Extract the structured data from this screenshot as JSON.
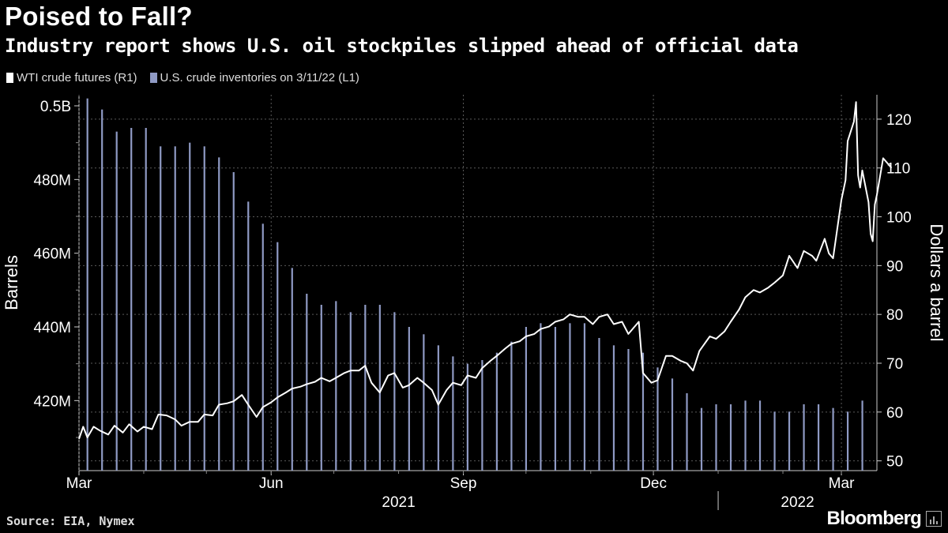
{
  "title": "Poised to Fall?",
  "subtitle": "Industry report shows U.S. oil stockpiles slipped ahead of official data",
  "legend": {
    "wti": "WTI crude futures (R1)",
    "inventories": "U.S. crude inventories on 3/11/22 (L1)"
  },
  "source": "Source: EIA, Nymex",
  "brand": "Bloomberg",
  "colors": {
    "background": "#000000",
    "line": "#ffffff",
    "bars": "#8f9ac4",
    "grid": "#5a5a5a"
  },
  "chart_data": {
    "type": "bar+line",
    "x_start": "2021-03-01",
    "x_end": "2022-03-18",
    "x_ticks": [
      "Mar",
      "Jun",
      "Sep",
      "Dec",
      "Mar"
    ],
    "x_tick_dates": [
      "2021-03-01",
      "2021-06-01",
      "2021-09-01",
      "2021-12-01",
      "2022-03-01"
    ],
    "year_labels": [
      "2021",
      "2022"
    ],
    "left_axis": {
      "label": "Barrels",
      "ticks": [
        420,
        440,
        460,
        480,
        500
      ],
      "tick_labels": [
        "420M",
        "440M",
        "460M",
        "480M",
        "0.5B"
      ],
      "range": [
        401,
        503
      ]
    },
    "right_axis": {
      "label": "Dollars a barrel",
      "ticks": [
        50,
        60,
        70,
        80,
        90,
        100,
        110,
        120
      ],
      "tick_labels": [
        "50",
        "60",
        "70",
        "80",
        "90",
        "100",
        "110",
        "120"
      ],
      "range": [
        48,
        125
      ]
    },
    "series": [
      {
        "name": "U.S. crude inventories on 3/11/22 (L1)",
        "axis": "left",
        "kind": "bar",
        "dates": [
          "2021-03-05",
          "2021-03-12",
          "2021-03-19",
          "2021-03-26",
          "2021-04-02",
          "2021-04-09",
          "2021-04-16",
          "2021-04-23",
          "2021-04-30",
          "2021-05-07",
          "2021-05-14",
          "2021-05-21",
          "2021-05-28",
          "2021-06-04",
          "2021-06-11",
          "2021-06-18",
          "2021-06-25",
          "2021-07-02",
          "2021-07-09",
          "2021-07-16",
          "2021-07-23",
          "2021-07-30",
          "2021-08-06",
          "2021-08-13",
          "2021-08-20",
          "2021-08-27",
          "2021-09-03",
          "2021-09-10",
          "2021-09-17",
          "2021-09-24",
          "2021-10-01",
          "2021-10-08",
          "2021-10-15",
          "2021-10-22",
          "2021-10-29",
          "2021-11-05",
          "2021-11-12",
          "2021-11-19",
          "2021-11-26",
          "2021-12-03",
          "2021-12-10",
          "2021-12-17",
          "2021-12-24",
          "2021-12-31",
          "2022-01-07",
          "2022-01-14",
          "2022-01-21",
          "2022-01-28",
          "2022-02-04",
          "2022-02-11",
          "2022-02-18",
          "2022-02-25",
          "2022-03-04",
          "2022-03-11"
        ],
        "values": [
          502,
          499,
          493,
          494,
          494,
          489,
          489,
          490,
          489,
          486,
          482,
          474,
          468,
          463,
          456,
          449,
          446,
          447,
          444,
          446,
          446,
          444,
          440,
          438,
          435,
          432,
          430,
          431,
          433,
          436,
          440,
          441,
          440,
          441,
          441,
          437,
          435,
          434,
          433,
          429,
          426,
          422,
          418,
          419,
          419,
          420,
          420,
          417,
          417,
          419,
          419,
          418,
          417,
          420
        ]
      },
      {
        "name": "WTI crude futures (R1)",
        "axis": "right",
        "kind": "line",
        "points": [
          [
            "2021-03-01",
            54.5
          ],
          [
            "2021-03-03",
            57.0
          ],
          [
            "2021-03-05",
            54.8
          ],
          [
            "2021-03-08",
            57.0
          ],
          [
            "2021-03-11",
            56.2
          ],
          [
            "2021-03-15",
            55.4
          ],
          [
            "2021-03-18",
            57.2
          ],
          [
            "2021-03-22",
            55.8
          ],
          [
            "2021-03-25",
            57.5
          ],
          [
            "2021-03-29",
            56.0
          ],
          [
            "2021-04-01",
            57.0
          ],
          [
            "2021-04-05",
            56.5
          ],
          [
            "2021-04-08",
            59.5
          ],
          [
            "2021-04-12",
            59.3
          ],
          [
            "2021-04-16",
            58.5
          ],
          [
            "2021-04-19",
            57.2
          ],
          [
            "2021-04-23",
            58.0
          ],
          [
            "2021-04-27",
            58.0
          ],
          [
            "2021-04-30",
            59.5
          ],
          [
            "2021-05-04",
            59.3
          ],
          [
            "2021-05-07",
            61.5
          ],
          [
            "2021-05-11",
            61.8
          ],
          [
            "2021-05-14",
            62.2
          ],
          [
            "2021-05-18",
            63.5
          ],
          [
            "2021-05-21",
            61.5
          ],
          [
            "2021-05-25",
            59.0
          ],
          [
            "2021-05-28",
            61.0
          ],
          [
            "2021-06-01",
            62.0
          ],
          [
            "2021-06-04",
            63.0
          ],
          [
            "2021-06-08",
            64.0
          ],
          [
            "2021-06-11",
            64.8
          ],
          [
            "2021-06-15",
            65.2
          ],
          [
            "2021-06-18",
            65.7
          ],
          [
            "2021-06-22",
            66.2
          ],
          [
            "2021-06-25",
            67.0
          ],
          [
            "2021-06-29",
            66.3
          ],
          [
            "2021-07-02",
            67.0
          ],
          [
            "2021-07-06",
            68.0
          ],
          [
            "2021-07-09",
            68.5
          ],
          [
            "2021-07-13",
            68.5
          ],
          [
            "2021-07-16",
            69.5
          ],
          [
            "2021-07-19",
            66.0
          ],
          [
            "2021-07-23",
            64.0
          ],
          [
            "2021-07-27",
            67.5
          ],
          [
            "2021-07-30",
            68.0
          ],
          [
            "2021-08-03",
            65.0
          ],
          [
            "2021-08-06",
            65.5
          ],
          [
            "2021-08-10",
            67.0
          ],
          [
            "2021-08-13",
            66.0
          ],
          [
            "2021-08-17",
            64.5
          ],
          [
            "2021-08-20",
            61.5
          ],
          [
            "2021-08-24",
            64.5
          ],
          [
            "2021-08-27",
            66.0
          ],
          [
            "2021-08-31",
            65.5
          ],
          [
            "2021-09-03",
            67.5
          ],
          [
            "2021-09-07",
            67.0
          ],
          [
            "2021-09-10",
            69.0
          ],
          [
            "2021-09-14",
            70.5
          ],
          [
            "2021-09-17",
            71.5
          ],
          [
            "2021-09-21",
            73.0
          ],
          [
            "2021-09-24",
            74.0
          ],
          [
            "2021-09-28",
            74.5
          ],
          [
            "2021-10-01",
            75.5
          ],
          [
            "2021-10-05",
            76.0
          ],
          [
            "2021-10-08",
            77.0
          ],
          [
            "2021-10-12",
            77.5
          ],
          [
            "2021-10-15",
            78.5
          ],
          [
            "2021-10-19",
            79.0
          ],
          [
            "2021-10-22",
            80.0
          ],
          [
            "2021-10-26",
            79.5
          ],
          [
            "2021-10-29",
            79.5
          ],
          [
            "2021-11-02",
            78.0
          ],
          [
            "2021-11-05",
            79.5
          ],
          [
            "2021-11-09",
            80.0
          ],
          [
            "2021-11-12",
            78.0
          ],
          [
            "2021-11-16",
            78.5
          ],
          [
            "2021-11-19",
            76.0
          ],
          [
            "2021-11-24",
            78.5
          ],
          [
            "2021-11-26",
            68.0
          ],
          [
            "2021-11-30",
            66.0
          ],
          [
            "2021-12-03",
            66.5
          ],
          [
            "2021-12-07",
            71.5
          ],
          [
            "2021-12-10",
            71.5
          ],
          [
            "2021-12-14",
            70.5
          ],
          [
            "2021-12-17",
            70.0
          ],
          [
            "2021-12-20",
            68.5
          ],
          [
            "2021-12-23",
            72.5
          ],
          [
            "2021-12-28",
            75.5
          ],
          [
            "2021-12-31",
            75.0
          ],
          [
            "2022-01-04",
            76.5
          ],
          [
            "2022-01-07",
            78.5
          ],
          [
            "2022-01-11",
            81.0
          ],
          [
            "2022-01-14",
            83.5
          ],
          [
            "2022-01-18",
            85.0
          ],
          [
            "2022-01-21",
            84.5
          ],
          [
            "2022-01-25",
            85.5
          ],
          [
            "2022-01-28",
            86.5
          ],
          [
            "2022-02-01",
            88.0
          ],
          [
            "2022-02-04",
            92.0
          ],
          [
            "2022-02-08",
            89.5
          ],
          [
            "2022-02-11",
            93.0
          ],
          [
            "2022-02-15",
            92.0
          ],
          [
            "2022-02-17",
            91.0
          ],
          [
            "2022-02-21",
            95.5
          ],
          [
            "2022-02-23",
            92.5
          ],
          [
            "2022-02-25",
            91.5
          ],
          [
            "2022-03-01",
            103.5
          ],
          [
            "2022-03-03",
            107.5
          ],
          [
            "2022-03-04",
            115.5
          ],
          [
            "2022-03-07",
            119.5
          ],
          [
            "2022-03-08",
            123.5
          ],
          [
            "2022-03-09",
            108.5
          ],
          [
            "2022-03-10",
            106.0
          ],
          [
            "2022-03-11",
            109.5
          ],
          [
            "2022-03-14",
            103.0
          ],
          [
            "2022-03-15",
            96.5
          ],
          [
            "2022-03-16",
            95.0
          ],
          [
            "2022-03-17",
            102.5
          ],
          [
            "2022-03-18",
            104.5
          ],
          [
            "2022-03-21",
            112.0
          ],
          [
            "2022-03-23",
            111.0
          ],
          [
            "2022-03-25",
            110.0
          ]
        ]
      }
    ]
  }
}
